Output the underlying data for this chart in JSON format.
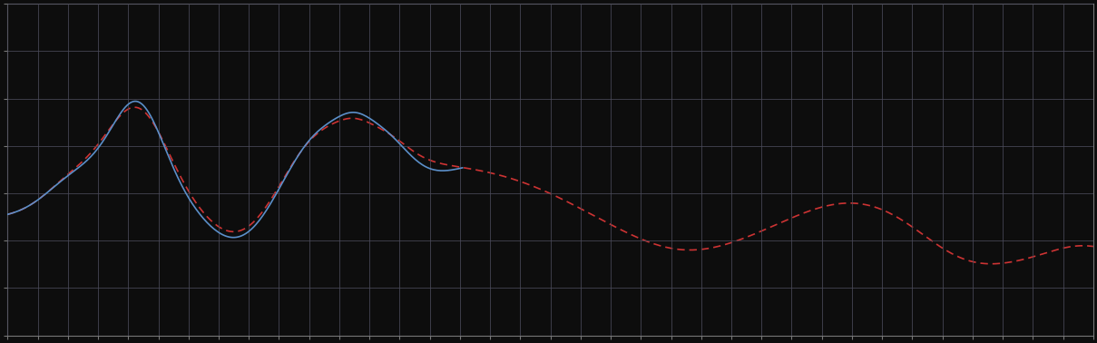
{
  "background_color": "#0d0d0d",
  "plot_bg_color": "#0d0d0d",
  "grid_color": "#4a4a5a",
  "blue_color": "#5b8fc9",
  "red_color": "#cc3333",
  "figsize": [
    12.09,
    3.78
  ],
  "dpi": 100,
  "n_points": 600,
  "grid_nx": 36,
  "grid_ny": 7
}
